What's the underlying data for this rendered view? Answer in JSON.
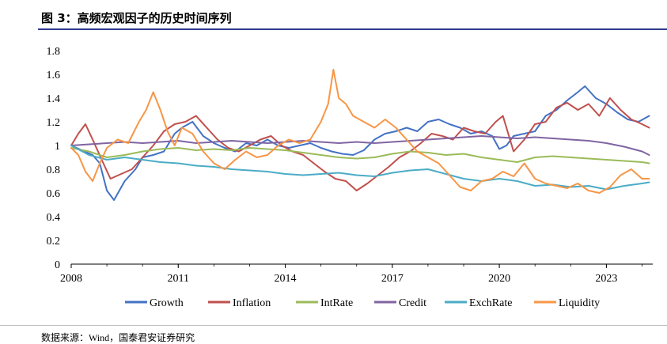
{
  "header": {
    "title": "图 3：高频宏观因子的历史时间序列"
  },
  "footer": {
    "source": "数据来源：Wind，国泰君安证券研究"
  },
  "chart_data": {
    "type": "line",
    "x_ticks": [
      "2008",
      "2011",
      "2014",
      "2017",
      "2020",
      "2023"
    ],
    "y_ticks": [
      "0",
      "0.2",
      "0.4",
      "0.6",
      "0.8",
      "1",
      "1.2",
      "1.4",
      "1.6",
      "1.8"
    ],
    "ylim": [
      0,
      1.8
    ],
    "xlim": [
      2008,
      2024.3
    ],
    "grid": false,
    "legend_position": "bottom",
    "series": [
      {
        "name": "Growth",
        "color": "#4472C4",
        "x": [
          2008.0,
          2008.3,
          2008.6,
          2008.8,
          2009.0,
          2009.2,
          2009.5,
          2009.8,
          2010.0,
          2010.3,
          2010.6,
          2010.9,
          2011.1,
          2011.4,
          2011.7,
          2012.0,
          2012.3,
          2012.6,
          2012.9,
          2013.2,
          2013.5,
          2013.8,
          2014.1,
          2014.4,
          2014.7,
          2015.0,
          2015.3,
          2015.6,
          2015.9,
          2016.2,
          2016.5,
          2016.8,
          2017.1,
          2017.4,
          2017.7,
          2018.0,
          2018.3,
          2018.6,
          2018.9,
          2019.2,
          2019.5,
          2019.8,
          2020.0,
          2020.2,
          2020.4,
          2020.7,
          2021.0,
          2021.3,
          2021.6,
          2021.9,
          2022.2,
          2022.4,
          2022.7,
          2023.0,
          2023.3,
          2023.6,
          2023.9,
          2024.2
        ],
        "y": [
          1.0,
          0.96,
          0.92,
          0.85,
          0.62,
          0.54,
          0.7,
          0.8,
          0.9,
          0.92,
          0.95,
          1.1,
          1.15,
          1.2,
          1.08,
          1.02,
          0.98,
          0.95,
          1.02,
          1.0,
          1.05,
          1.0,
          0.98,
          1.0,
          1.02,
          0.98,
          0.95,
          0.93,
          0.92,
          0.96,
          1.05,
          1.1,
          1.12,
          1.15,
          1.12,
          1.2,
          1.22,
          1.18,
          1.15,
          1.1,
          1.12,
          1.08,
          0.97,
          1.0,
          1.08,
          1.1,
          1.12,
          1.25,
          1.3,
          1.38,
          1.45,
          1.5,
          1.4,
          1.35,
          1.28,
          1.22,
          1.2,
          1.25
        ]
      },
      {
        "name": "Inflation",
        "color": "#C0504D",
        "x": [
          2008.0,
          2008.2,
          2008.4,
          2008.6,
          2008.9,
          2009.1,
          2009.4,
          2009.7,
          2010.0,
          2010.3,
          2010.6,
          2010.9,
          2011.2,
          2011.5,
          2011.8,
          2012.1,
          2012.4,
          2012.7,
          2013.0,
          2013.3,
          2013.6,
          2013.9,
          2014.2,
          2014.5,
          2014.8,
          2015.1,
          2015.4,
          2015.7,
          2016.0,
          2016.3,
          2016.6,
          2016.9,
          2017.2,
          2017.5,
          2017.8,
          2018.1,
          2018.4,
          2018.7,
          2019.0,
          2019.3,
          2019.6,
          2019.9,
          2020.1,
          2020.4,
          2020.7,
          2021.0,
          2021.3,
          2021.6,
          2021.9,
          2022.2,
          2022.5,
          2022.8,
          2023.1,
          2023.4,
          2023.7,
          2024.0,
          2024.2
        ],
        "y": [
          1.0,
          1.1,
          1.18,
          1.05,
          0.85,
          0.72,
          0.76,
          0.8,
          0.9,
          1.0,
          1.12,
          1.18,
          1.2,
          1.25,
          1.15,
          1.05,
          0.98,
          0.95,
          1.0,
          1.05,
          1.08,
          1.0,
          0.95,
          0.92,
          0.85,
          0.78,
          0.72,
          0.7,
          0.62,
          0.68,
          0.75,
          0.82,
          0.9,
          0.95,
          1.02,
          1.1,
          1.08,
          1.05,
          1.15,
          1.12,
          1.1,
          1.2,
          1.25,
          0.95,
          1.05,
          1.18,
          1.2,
          1.32,
          1.36,
          1.3,
          1.35,
          1.25,
          1.4,
          1.3,
          1.22,
          1.18,
          1.15
        ]
      },
      {
        "name": "IntRate",
        "color": "#9BBB59",
        "x": [
          2008.0,
          2008.5,
          2009.0,
          2009.5,
          2010.0,
          2010.5,
          2011.0,
          2011.5,
          2012.0,
          2012.5,
          2013.0,
          2013.5,
          2014.0,
          2014.5,
          2015.0,
          2015.5,
          2016.0,
          2016.5,
          2017.0,
          2017.5,
          2018.0,
          2018.5,
          2019.0,
          2019.5,
          2020.0,
          2020.5,
          2021.0,
          2021.5,
          2022.0,
          2022.5,
          2023.0,
          2023.5,
          2024.0,
          2024.2
        ],
        "y": [
          0.98,
          0.95,
          0.9,
          0.92,
          0.95,
          0.97,
          0.98,
          0.96,
          0.97,
          0.96,
          0.98,
          0.97,
          0.96,
          0.94,
          0.92,
          0.9,
          0.89,
          0.9,
          0.93,
          0.95,
          0.94,
          0.92,
          0.93,
          0.9,
          0.88,
          0.86,
          0.9,
          0.91,
          0.9,
          0.89,
          0.88,
          0.87,
          0.86,
          0.85
        ]
      },
      {
        "name": "Credit",
        "color": "#8064A2",
        "x": [
          2008.0,
          2008.5,
          2009.0,
          2009.5,
          2010.0,
          2010.5,
          2011.0,
          2011.5,
          2012.0,
          2012.5,
          2013.0,
          2013.5,
          2014.0,
          2014.5,
          2015.0,
          2015.5,
          2016.0,
          2016.5,
          2017.0,
          2017.5,
          2018.0,
          2018.5,
          2019.0,
          2019.5,
          2020.0,
          2020.5,
          2021.0,
          2021.5,
          2022.0,
          2022.5,
          2023.0,
          2023.5,
          2024.0,
          2024.2
        ],
        "y": [
          1.0,
          1.01,
          1.02,
          1.03,
          1.02,
          1.03,
          1.04,
          1.02,
          1.03,
          1.04,
          1.03,
          1.02,
          1.03,
          1.04,
          1.03,
          1.02,
          1.03,
          1.02,
          1.03,
          1.04,
          1.05,
          1.06,
          1.07,
          1.08,
          1.07,
          1.06,
          1.07,
          1.06,
          1.05,
          1.04,
          1.02,
          0.99,
          0.95,
          0.92
        ]
      },
      {
        "name": "ExchRate",
        "color": "#4BACC6",
        "x": [
          2008.0,
          2008.5,
          2009.0,
          2009.5,
          2010.0,
          2010.5,
          2011.0,
          2011.5,
          2012.0,
          2012.5,
          2013.0,
          2013.5,
          2014.0,
          2014.5,
          2015.0,
          2015.5,
          2016.0,
          2016.5,
          2017.0,
          2017.5,
          2018.0,
          2018.5,
          2019.0,
          2019.5,
          2020.0,
          2020.5,
          2021.0,
          2021.5,
          2022.0,
          2022.5,
          2023.0,
          2023.5,
          2024.0,
          2024.2
        ],
        "y": [
          1.0,
          0.92,
          0.88,
          0.9,
          0.88,
          0.86,
          0.85,
          0.83,
          0.82,
          0.8,
          0.79,
          0.78,
          0.76,
          0.75,
          0.76,
          0.77,
          0.75,
          0.74,
          0.77,
          0.79,
          0.8,
          0.76,
          0.72,
          0.7,
          0.72,
          0.7,
          0.66,
          0.67,
          0.65,
          0.66,
          0.63,
          0.66,
          0.68,
          0.69
        ]
      },
      {
        "name": "Liquidity",
        "color": "#F79646",
        "x": [
          2008.0,
          2008.2,
          2008.4,
          2008.6,
          2008.8,
          2009.0,
          2009.3,
          2009.6,
          2009.9,
          2010.1,
          2010.3,
          2010.5,
          2010.7,
          2010.9,
          2011.1,
          2011.4,
          2011.7,
          2012.0,
          2012.3,
          2012.6,
          2012.9,
          2013.2,
          2013.5,
          2013.8,
          2014.1,
          2014.4,
          2014.7,
          2015.0,
          2015.2,
          2015.35,
          2015.5,
          2015.7,
          2015.9,
          2016.2,
          2016.5,
          2016.8,
          2017.1,
          2017.4,
          2017.7,
          2018.0,
          2018.3,
          2018.6,
          2018.9,
          2019.2,
          2019.5,
          2019.8,
          2020.1,
          2020.4,
          2020.7,
          2021.0,
          2021.3,
          2021.6,
          2021.9,
          2022.2,
          2022.5,
          2022.8,
          2023.1,
          2023.4,
          2023.7,
          2024.0,
          2024.2
        ],
        "y": [
          0.98,
          0.92,
          0.78,
          0.7,
          0.85,
          0.98,
          1.05,
          1.02,
          1.2,
          1.3,
          1.45,
          1.3,
          1.12,
          1.0,
          1.15,
          1.1,
          0.95,
          0.85,
          0.8,
          0.88,
          0.95,
          0.9,
          0.92,
          1.0,
          1.05,
          1.02,
          1.05,
          1.2,
          1.35,
          1.64,
          1.4,
          1.35,
          1.25,
          1.2,
          1.15,
          1.22,
          1.15,
          1.05,
          0.95,
          0.9,
          0.85,
          0.75,
          0.65,
          0.62,
          0.7,
          0.72,
          0.78,
          0.74,
          0.85,
          0.72,
          0.68,
          0.66,
          0.64,
          0.68,
          0.62,
          0.6,
          0.65,
          0.75,
          0.8,
          0.72,
          0.72
        ]
      }
    ]
  }
}
